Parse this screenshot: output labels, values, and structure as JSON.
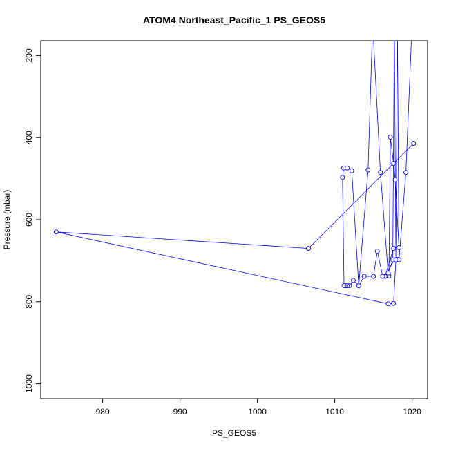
{
  "chart_data": {
    "type": "line",
    "title": "ATOM4 Northeast_Pacific_1 PS_GEOS5",
    "xlabel": "PS_GEOS5",
    "ylabel": "Pressure (mbar)",
    "xlim": [
      972.0,
      1022.0
    ],
    "ylim": [
      1036.0,
      164.0
    ],
    "y_reversed": true,
    "x_ticks": [
      980,
      990,
      1000,
      1010,
      1020
    ],
    "y_ticks": [
      200,
      400,
      600,
      800,
      1000
    ],
    "grid": false,
    "legend": "none",
    "series_color": "#0000ff",
    "series": [
      {
        "x": [
          1020.2,
          1006.6,
          974.0,
          1016.9,
          1017.6,
          1017.9,
          1018.1,
          1018.2,
          1018.0,
          1017.7,
          1016.5,
          1017.6,
          1018.3,
          1017.8,
          1017.6,
          1017.2,
          1017.0,
          1016.2,
          1015.5,
          1015.0,
          1013.8,
          1013.1,
          1012.4,
          1011.9,
          1011.6,
          1011.4,
          1011.2,
          1011.0,
          1011.15,
          1011.6,
          1012.2,
          1013.1,
          1014.3,
          1014.9,
          1015.9,
          1016.9,
          1017.5,
          1017.7,
          1017.9,
          1018.1,
          1018.3,
          1019.2,
          1020.0
        ],
        "y": [
          414,
          670,
          630,
          805,
          804,
          698,
          698,
          697,
          697,
          698,
          738,
          670,
          668,
          503,
          463,
          399,
          737,
          738,
          677,
          738,
          738,
          761,
          748,
          761,
          761,
          761,
          761,
          497,
          474,
          474,
          481,
          761,
          479,
          120,
          485,
          730,
          698,
          120,
          698,
          120,
          698,
          485,
          120
        ]
      }
    ]
  }
}
